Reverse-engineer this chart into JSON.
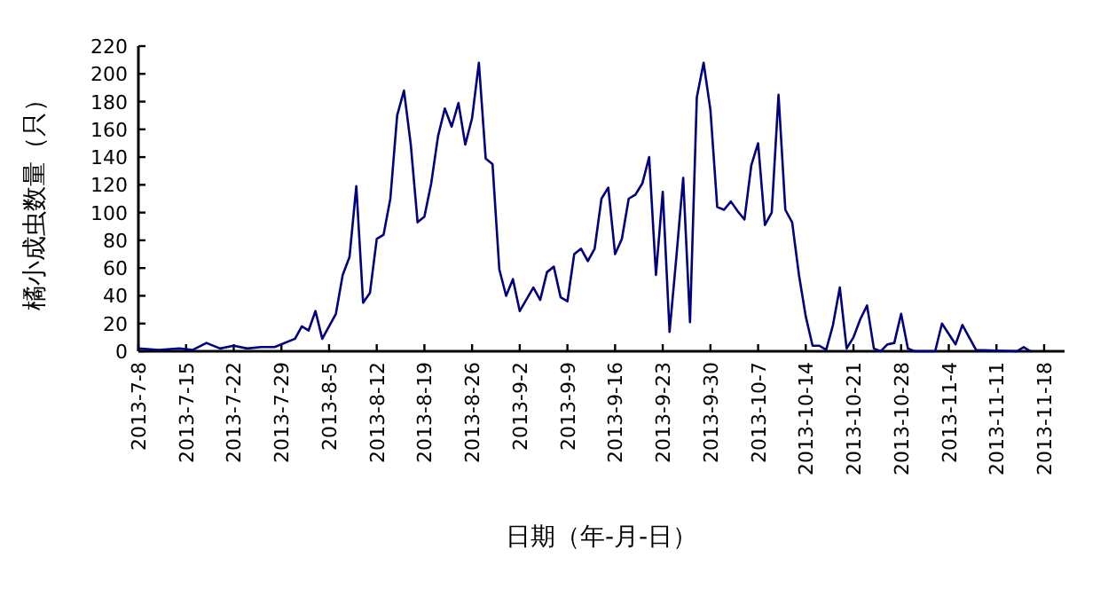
{
  "chart_data": {
    "type": "line",
    "xlabel": "日期（年-月-日）",
    "ylabel": "橘小成虫数量（只）",
    "xlim": [
      "2013-07-08",
      "2013-11-21"
    ],
    "ylim": [
      0,
      220
    ],
    "yticks": [
      0,
      20,
      40,
      60,
      80,
      100,
      120,
      140,
      160,
      180,
      200,
      220
    ],
    "xticks": [
      {
        "value": "2013-07-08",
        "label": "2013-7-8"
      },
      {
        "value": "2013-07-15",
        "label": "2013-7-15"
      },
      {
        "value": "2013-07-22",
        "label": "2013-7-22"
      },
      {
        "value": "2013-07-29",
        "label": "2013-7-29"
      },
      {
        "value": "2013-08-05",
        "label": "2013-8-5"
      },
      {
        "value": "2013-08-12",
        "label": "2013-8-12"
      },
      {
        "value": "2013-08-19",
        "label": "2013-8-19"
      },
      {
        "value": "2013-08-26",
        "label": "2013-8-26"
      },
      {
        "value": "2013-09-02",
        "label": "2013-9-2"
      },
      {
        "value": "2013-09-09",
        "label": "2013-9-9"
      },
      {
        "value": "2013-09-16",
        "label": "2013-9-16"
      },
      {
        "value": "2013-09-23",
        "label": "2013-9-23"
      },
      {
        "value": "2013-09-30",
        "label": "2013-9-30"
      },
      {
        "value": "2013-10-07",
        "label": "2013-10-7"
      },
      {
        "value": "2013-10-14",
        "label": "2013-10-14"
      },
      {
        "value": "2013-10-21",
        "label": "2013-10-21"
      },
      {
        "value": "2013-10-28",
        "label": "2013-10-28"
      },
      {
        "value": "2013-11-04",
        "label": "2013-11-4"
      },
      {
        "value": "2013-11-11",
        "label": "2013-11-11"
      },
      {
        "value": "2013-11-18",
        "label": "2013-11-18"
      }
    ],
    "grid": false,
    "marker": "none",
    "line_style": "solid",
    "series": [
      {
        "color": "#000080",
        "x": [
          "2013-07-08",
          "2013-07-11",
          "2013-07-14",
          "2013-07-16",
          "2013-07-18",
          "2013-07-20",
          "2013-07-22",
          "2013-07-24",
          "2013-07-26",
          "2013-07-28",
          "2013-07-31",
          "2013-08-01",
          "2013-08-02",
          "2013-08-03",
          "2013-08-04",
          "2013-08-06",
          "2013-08-07",
          "2013-08-08",
          "2013-08-09",
          "2013-08-10",
          "2013-08-11",
          "2013-08-12",
          "2013-08-13",
          "2013-08-14",
          "2013-08-15",
          "2013-08-16",
          "2013-08-17",
          "2013-08-18",
          "2013-08-19",
          "2013-08-20",
          "2013-08-21",
          "2013-08-22",
          "2013-08-23",
          "2013-08-24",
          "2013-08-25",
          "2013-08-26",
          "2013-08-27",
          "2013-08-28",
          "2013-08-29",
          "2013-08-30",
          "2013-08-31",
          "2013-09-01",
          "2013-09-02",
          "2013-09-04",
          "2013-09-05",
          "2013-09-06",
          "2013-09-07",
          "2013-09-08",
          "2013-09-09",
          "2013-09-10",
          "2013-09-11",
          "2013-09-12",
          "2013-09-13",
          "2013-09-14",
          "2013-09-15",
          "2013-09-16",
          "2013-09-17",
          "2013-09-18",
          "2013-09-19",
          "2013-09-20",
          "2013-09-21",
          "2013-09-22",
          "2013-09-23",
          "2013-09-24",
          "2013-09-25",
          "2013-09-26",
          "2013-09-27",
          "2013-09-28",
          "2013-09-29",
          "2013-09-30",
          "2013-10-01",
          "2013-10-02",
          "2013-10-03",
          "2013-10-04",
          "2013-10-05",
          "2013-10-06",
          "2013-10-07",
          "2013-10-08",
          "2013-10-09",
          "2013-10-10",
          "2013-10-11",
          "2013-10-12",
          "2013-10-13",
          "2013-10-14",
          "2013-10-15",
          "2013-10-16",
          "2013-10-17",
          "2013-10-18",
          "2013-10-19",
          "2013-10-20",
          "2013-10-21",
          "2013-10-22",
          "2013-10-23",
          "2013-10-24",
          "2013-10-25",
          "2013-10-26",
          "2013-10-27",
          "2013-10-28",
          "2013-10-29",
          "2013-10-30",
          "2013-11-02",
          "2013-11-03",
          "2013-11-05",
          "2013-11-06",
          "2013-11-08",
          "2013-11-14",
          "2013-11-15",
          "2013-11-16"
        ],
        "values": [
          2,
          1,
          2,
          1,
          6,
          2,
          4,
          2,
          3,
          3,
          9,
          18,
          15,
          29,
          9,
          27,
          55,
          68,
          119,
          35,
          42,
          81,
          84,
          110,
          170,
          188,
          149,
          93,
          97,
          121,
          155,
          175,
          162,
          179,
          149,
          168,
          208,
          139,
          135,
          59,
          40,
          52,
          29,
          46,
          37,
          57,
          61,
          39,
          36,
          70,
          74,
          65,
          74,
          110,
          118,
          70,
          81,
          110,
          113,
          121,
          140,
          55,
          115,
          14,
          68,
          125,
          21,
          183,
          208,
          174,
          104,
          102,
          108,
          101,
          95,
          134,
          150,
          91,
          100,
          185,
          102,
          93,
          55,
          25,
          4,
          4,
          1,
          19,
          46,
          2,
          10,
          23,
          33,
          2,
          0,
          5,
          6,
          27,
          2,
          0,
          0,
          20,
          5,
          19,
          1,
          0,
          3,
          0
        ]
      }
    ]
  }
}
